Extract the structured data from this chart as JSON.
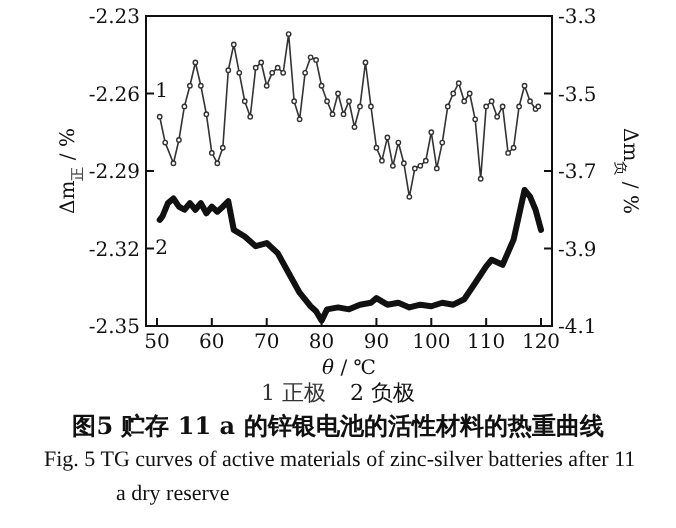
{
  "chart_data": {
    "type": "line",
    "title": "图5  贮存 11 a 的锌银电池的活性材料的热重曲线",
    "subtitle": "Fig. 5  TG curves of active materials of zinc-silver batteries after 11 a dry reserve",
    "xlabel": "*θ* / ℃",
    "ylabel": "Δm$_{正}$ / %",
    "y2label": "Δm$_{负}$ / %",
    "xlim": [
      48,
      122
    ],
    "xticks": [
      50,
      60,
      70,
      80,
      90,
      100,
      110,
      120
    ],
    "ylim": [
      -2.35,
      -2.23
    ],
    "yticks": [
      -2.35,
      -2.32,
      -2.29,
      -2.26,
      -2.23
    ],
    "y2lim": [
      -4.1,
      -3.3
    ],
    "y2ticks": [
      -4.1,
      -3.9,
      -3.7,
      -3.5,
      -3.3
    ],
    "legend": "bottom",
    "grid": false,
    "series": [
      {
        "name": "1 正极",
        "color": "#333333",
        "marker": "circle",
        "x": [
          50.5,
          51.5,
          53,
          54,
          55,
          56,
          57,
          58,
          59,
          60,
          61,
          62,
          63,
          64,
          65,
          66,
          67,
          68,
          69,
          70,
          71,
          72,
          73,
          74,
          75,
          76,
          77,
          78,
          79,
          80,
          81,
          82,
          83,
          84,
          85,
          86,
          87,
          88,
          89,
          90,
          91,
          92,
          93,
          94,
          95,
          96,
          97,
          98,
          99,
          100,
          101,
          102,
          103,
          104,
          105,
          106,
          107,
          108,
          109,
          110,
          111,
          112,
          113,
          114,
          115,
          116,
          117,
          118,
          119,
          119.5
        ],
        "values": [
          -2.269,
          -2.279,
          -2.287,
          -2.278,
          -2.265,
          -2.257,
          -2.248,
          -2.257,
          -2.268,
          -2.283,
          -2.287,
          -2.281,
          -2.251,
          -2.241,
          -2.252,
          -2.263,
          -2.269,
          -2.25,
          -2.248,
          -2.257,
          -2.252,
          -2.25,
          -2.252,
          -2.237,
          -2.263,
          -2.27,
          -2.252,
          -2.246,
          -2.247,
          -2.257,
          -2.263,
          -2.268,
          -2.26,
          -2.268,
          -2.263,
          -2.273,
          -2.265,
          -2.248,
          -2.265,
          -2.281,
          -2.286,
          -2.277,
          -2.288,
          -2.279,
          -2.287,
          -2.3,
          -2.289,
          -2.288,
          -2.286,
          -2.275,
          -2.289,
          -2.279,
          -2.265,
          -2.26,
          -2.256,
          -2.263,
          -2.26,
          -2.27,
          -2.293,
          -2.265,
          -2.263,
          -2.269,
          -2.265,
          -2.283,
          -2.281,
          -2.265,
          -2.257,
          -2.263,
          -2.266,
          -2.265
        ]
      },
      {
        "name": "2 负极",
        "color": "#111111",
        "axis": "y2",
        "x": [
          50.5,
          51,
          52,
          53,
          54,
          55,
          56,
          57,
          58,
          59,
          60,
          61,
          62,
          63,
          64,
          66,
          68,
          70,
          72,
          74,
          76,
          78,
          79,
          80,
          81,
          83,
          85,
          87,
          89,
          90,
          92,
          94,
          96,
          98,
          100,
          102,
          104,
          106,
          108,
          110,
          111,
          113,
          115,
          117,
          118,
          119,
          120
        ],
        "values": [
          -3.826,
          -3.817,
          -3.783,
          -3.771,
          -3.792,
          -3.8,
          -3.783,
          -3.8,
          -3.783,
          -3.809,
          -3.792,
          -3.805,
          -3.792,
          -3.778,
          -3.852,
          -3.869,
          -3.894,
          -3.886,
          -3.912,
          -3.963,
          -4.014,
          -4.049,
          -4.062,
          -4.086,
          -4.057,
          -4.052,
          -4.057,
          -4.045,
          -4.04,
          -4.028,
          -4.045,
          -4.04,
          -4.052,
          -4.045,
          -4.049,
          -4.04,
          -4.045,
          -4.031,
          -3.989,
          -3.946,
          -3.929,
          -3.942,
          -3.877,
          -3.749,
          -3.766,
          -3.8,
          -3.852
        ]
      }
    ],
    "annotations": [
      "1",
      "2"
    ]
  }
}
